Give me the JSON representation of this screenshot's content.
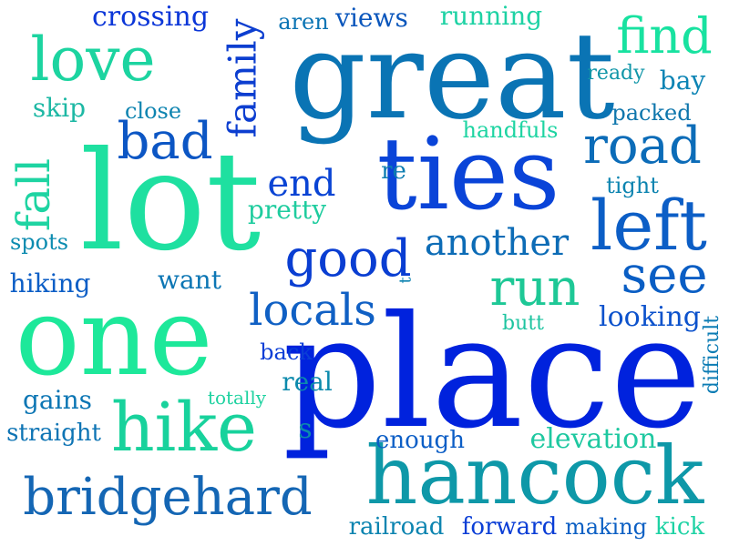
{
  "words": [
    {
      "text": "place",
      "color": "#0022dd",
      "rotate": false
    },
    {
      "text": "great",
      "color": "#0a74b4",
      "rotate": false
    },
    {
      "text": "lot",
      "color": "#1ee0a0",
      "rotate": false
    },
    {
      "text": "one",
      "color": "#1de89a",
      "rotate": false
    },
    {
      "text": "ties",
      "color": "#0a44d8",
      "rotate": false
    },
    {
      "text": "hancock",
      "color": "#0e98a8",
      "rotate": false
    },
    {
      "text": "hike",
      "color": "#18d29c",
      "rotate": false
    },
    {
      "text": "left",
      "color": "#0c5ec6",
      "rotate": false
    },
    {
      "text": "bridgehard",
      "color": "#1466b4",
      "rotate": false
    },
    {
      "text": "love",
      "color": "#1cd4a0",
      "rotate": false
    },
    {
      "text": "find",
      "color": "#18e2a0",
      "rotate": false
    },
    {
      "text": "road",
      "color": "#0c6cb8",
      "rotate": false
    },
    {
      "text": "good",
      "color": "#0a3ed2",
      "rotate": false
    },
    {
      "text": "bad",
      "color": "#0c56c4",
      "rotate": false
    },
    {
      "text": "run",
      "color": "#1ec896",
      "rotate": false
    },
    {
      "text": "see",
      "color": "#0a5ec4",
      "rotate": false
    },
    {
      "text": "locals",
      "color": "#1060c4",
      "rotate": false
    },
    {
      "text": "another",
      "color": "#0d6cb6",
      "rotate": false
    },
    {
      "text": "fall",
      "color": "#1ed4a2",
      "rotate": true
    },
    {
      "text": "family",
      "color": "#0c3ed0",
      "rotate": true
    },
    {
      "text": "end",
      "color": "#0a44d4",
      "rotate": false
    },
    {
      "text": "elevation",
      "color": "#1ec8a0",
      "rotate": false
    },
    {
      "text": "crossing",
      "color": "#0b36d8",
      "rotate": false
    },
    {
      "text": "running",
      "color": "#1ed2a4",
      "rotate": false
    },
    {
      "text": "views",
      "color": "#0a56bc",
      "rotate": false
    },
    {
      "text": "aren",
      "color": "#0a74b4",
      "rotate": false
    },
    {
      "text": "skip",
      "color": "#1db8a4",
      "rotate": false
    },
    {
      "text": "close",
      "color": "#0e84b0",
      "rotate": false
    },
    {
      "text": "ready",
      "color": "#1096a8",
      "rotate": false
    },
    {
      "text": "bay",
      "color": "#0c84b4",
      "rotate": false
    },
    {
      "text": "packed",
      "color": "#0e76ac",
      "rotate": false
    },
    {
      "text": "handfuls",
      "color": "#1ed4a2",
      "rotate": false
    },
    {
      "text": "re",
      "color": "#0c7cb0",
      "rotate": false
    },
    {
      "text": "tight",
      "color": "#0c84b0",
      "rotate": false
    },
    {
      "text": "pretty",
      "color": "#1ecc9e",
      "rotate": false
    },
    {
      "text": "spots",
      "color": "#0c8cb0",
      "rotate": false
    },
    {
      "text": "hiking",
      "color": "#0c5ec6",
      "rotate": false
    },
    {
      "text": "want",
      "color": "#0c76b4",
      "rotate": false
    },
    {
      "text": "t",
      "color": "#0c82b0",
      "rotate": true
    },
    {
      "text": "butt",
      "color": "#1ec4a0",
      "rotate": false
    },
    {
      "text": "looking",
      "color": "#0c52cc",
      "rotate": false
    },
    {
      "text": "difficult",
      "color": "#0c7cb4",
      "rotate": true
    },
    {
      "text": "back",
      "color": "#0a3ed6",
      "rotate": false
    },
    {
      "text": "real",
      "color": "#0c8aac",
      "rotate": false
    },
    {
      "text": "totally",
      "color": "#1ed2a0",
      "rotate": false
    },
    {
      "text": "gains",
      "color": "#0c76b4",
      "rotate": false
    },
    {
      "text": "straight",
      "color": "#0e74b4",
      "rotate": false
    },
    {
      "text": "s",
      "color": "#0c8aac",
      "rotate": false
    },
    {
      "text": "enough",
      "color": "#0c5ec6",
      "rotate": false
    },
    {
      "text": "railroad",
      "color": "#0c84b0",
      "rotate": false
    },
    {
      "text": "forward",
      "color": "#0a3ed6",
      "rotate": false
    },
    {
      "text": "making",
      "color": "#0c60c4",
      "rotate": false
    },
    {
      "text": "kick",
      "color": "#1ed2a4",
      "rotate": false
    }
  ]
}
